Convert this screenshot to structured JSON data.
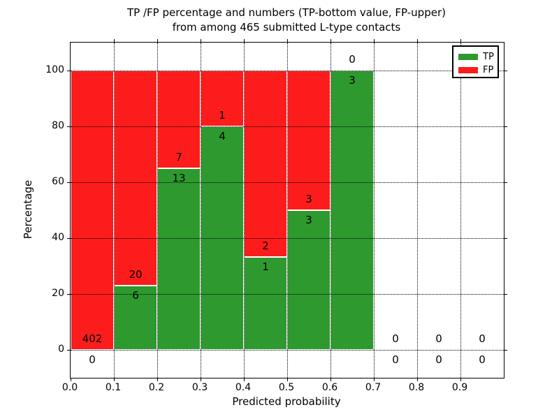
{
  "chart_data": {
    "type": "bar",
    "variant": "stacked-percentage",
    "title_line1": "TP /FP percentage and numbers (TP-bottom value, FP-upper)",
    "title_line2": "from among 465 submitted L-type contacts",
    "xlabel": "Predicted probability",
    "ylabel": "Percentage",
    "total_submitted": 465,
    "x_tick_labels": [
      "0.0",
      "0.1",
      "0.2",
      "0.3",
      "0.4",
      "0.5",
      "0.6",
      "0.7",
      "0.8",
      "0.9"
    ],
    "y_tick_values": [
      0,
      20,
      40,
      60,
      80,
      100
    ],
    "xlim": [
      0.0,
      1.0
    ],
    "ylim": [
      -10,
      110
    ],
    "grid": "dotted",
    "legend": {
      "position": "upper-right",
      "entries": [
        {
          "label": "TP",
          "color": "#2e992e"
        },
        {
          "label": "FP",
          "color": "#fc1c1c"
        }
      ]
    },
    "series": [
      {
        "name": "TP",
        "color": "#2e992e",
        "values": [
          0,
          6,
          13,
          4,
          1,
          3,
          3,
          0,
          0,
          0
        ]
      },
      {
        "name": "FP",
        "color": "#fc1c1c",
        "values": [
          402,
          20,
          7,
          1,
          2,
          3,
          0,
          0,
          0,
          0
        ]
      }
    ],
    "bins": [
      {
        "x_start": 0.0,
        "x_end": 0.1,
        "tp": 0,
        "fp": 402
      },
      {
        "x_start": 0.1,
        "x_end": 0.2,
        "tp": 6,
        "fp": 20
      },
      {
        "x_start": 0.2,
        "x_end": 0.3,
        "tp": 13,
        "fp": 7
      },
      {
        "x_start": 0.3,
        "x_end": 0.4,
        "tp": 4,
        "fp": 1
      },
      {
        "x_start": 0.4,
        "x_end": 0.5,
        "tp": 1,
        "fp": 2
      },
      {
        "x_start": 0.5,
        "x_end": 0.6,
        "tp": 3,
        "fp": 3
      },
      {
        "x_start": 0.6,
        "x_end": 0.7,
        "tp": 3,
        "fp": 0
      },
      {
        "x_start": 0.7,
        "x_end": 0.8,
        "tp": 0,
        "fp": 0
      },
      {
        "x_start": 0.8,
        "x_end": 0.9,
        "tp": 0,
        "fp": 0
      },
      {
        "x_start": 0.9,
        "x_end": 1.0,
        "tp": 0,
        "fp": 0
      }
    ],
    "colors": {
      "tp": "#2e992e",
      "fp": "#fc1c1c",
      "bar_edge": "#ffffff",
      "grid": "#000000",
      "spine": "#000000",
      "background": "#ffffff"
    }
  }
}
